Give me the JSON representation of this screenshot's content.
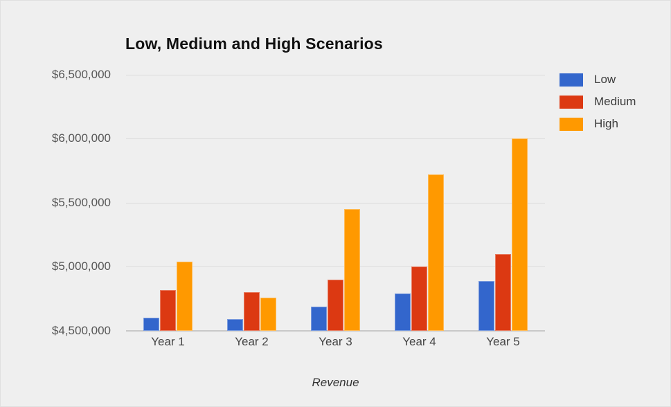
{
  "page": {
    "background_color": "#efefef",
    "gridline_color": "#dcdcdc",
    "baseline_color": "#c9c9c9"
  },
  "chart_data": {
    "type": "bar",
    "title": "Low, Medium and High Scenarios",
    "xlabel": "Revenue",
    "ylabel": "",
    "categories": [
      "Year 1",
      "Year 2",
      "Year 3",
      "Year 4",
      "Year 5"
    ],
    "series": [
      {
        "name": "Low",
        "color": "#3366CC",
        "values": [
          4600000,
          4590000,
          4690000,
          4790000,
          4890000
        ]
      },
      {
        "name": "Medium",
        "color": "#DC3912",
        "values": [
          4820000,
          4800000,
          4900000,
          5000000,
          5100000
        ]
      },
      {
        "name": "High",
        "color": "#FF9900",
        "values": [
          5040000,
          4760000,
          5450000,
          5720000,
          6000000
        ]
      }
    ],
    "ylim": [
      4500000,
      6500000
    ],
    "yticks": [
      {
        "value": 6500000,
        "label": "$6,500,000"
      },
      {
        "value": 6000000,
        "label": "$6,000,000"
      },
      {
        "value": 5500000,
        "label": "$5,500,000"
      },
      {
        "value": 5000000,
        "label": "$5,000,000"
      },
      {
        "value": 4500000,
        "label": "$4,500,000"
      }
    ],
    "grid": true,
    "legend_position": "right"
  }
}
